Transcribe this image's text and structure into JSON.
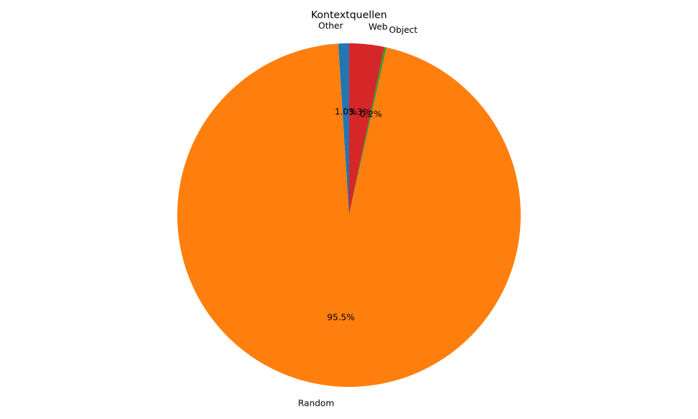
{
  "chart_data": {
    "type": "pie",
    "title": "Kontextquellen",
    "slices": [
      {
        "label": "Other",
        "value": 1.0,
        "pct_label": "1.0%",
        "color": "#1f77b4"
      },
      {
        "label": "Random",
        "value": 95.5,
        "pct_label": "95.5%",
        "color": "#ff7f0e"
      },
      {
        "label": "Object",
        "value": 0.2,
        "pct_label": "0.2%",
        "color": "#2ca02c"
      },
      {
        "label": "Web",
        "value": 3.3,
        "pct_label": "3.3%",
        "color": "#d62728"
      }
    ],
    "start_angle": 90,
    "direction": "counterclockwise",
    "legend": "none"
  }
}
